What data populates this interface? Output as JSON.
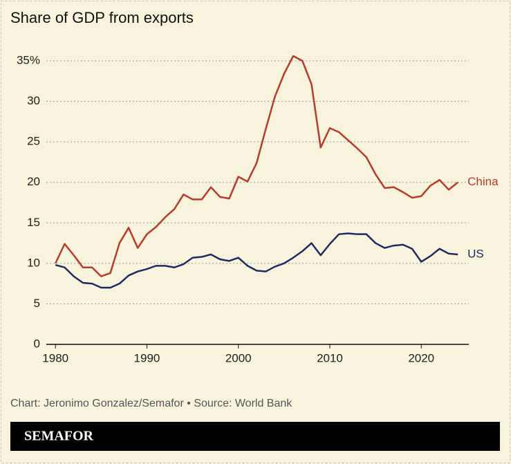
{
  "chart_data": {
    "type": "line",
    "title": "Share of GDP from exports",
    "x": [
      1980,
      1981,
      1982,
      1983,
      1984,
      1985,
      1986,
      1987,
      1988,
      1989,
      1990,
      1991,
      1992,
      1993,
      1994,
      1995,
      1996,
      1997,
      1998,
      1999,
      2000,
      2001,
      2002,
      2003,
      2004,
      2005,
      2006,
      2007,
      2008,
      2009,
      2010,
      2011,
      2012,
      2013,
      2014,
      2015,
      2016,
      2017,
      2018,
      2019,
      2020,
      2021,
      2022,
      2023,
      2024
    ],
    "series": [
      {
        "name": "China",
        "color": "#b83a2b",
        "values": [
          10.0,
          12.4,
          11.0,
          9.5,
          9.5,
          8.4,
          8.8,
          12.5,
          14.4,
          11.9,
          13.6,
          14.5,
          15.7,
          16.7,
          18.5,
          17.9,
          17.9,
          19.4,
          18.2,
          18.0,
          20.7,
          20.1,
          22.4,
          26.6,
          30.6,
          33.4,
          35.6,
          35.0,
          32.1,
          24.3,
          26.7,
          26.2,
          25.2,
          24.2,
          23.1,
          21.0,
          19.3,
          19.4,
          18.8,
          18.1,
          18.3,
          19.6,
          20.3,
          19.1,
          20.0
        ]
      },
      {
        "name": "US",
        "color": "#1f2a63",
        "values": [
          9.8,
          9.5,
          8.4,
          7.6,
          7.5,
          7.0,
          7.0,
          7.5,
          8.5,
          9.0,
          9.3,
          9.7,
          9.7,
          9.5,
          9.9,
          10.7,
          10.8,
          11.1,
          10.5,
          10.3,
          10.7,
          9.7,
          9.1,
          9.0,
          9.6,
          10.0,
          10.7,
          11.5,
          12.5,
          11.0,
          12.4,
          13.6,
          13.7,
          13.6,
          13.6,
          12.5,
          11.9,
          12.2,
          12.3,
          11.8,
          10.2,
          10.9,
          11.8,
          11.2,
          11.1
        ]
      }
    ],
    "xlim": [
      1979,
      2025.2
    ],
    "xticks": [
      1980,
      1990,
      2000,
      2010,
      2020
    ],
    "ylim": [
      0,
      35
    ],
    "yticks": [
      0,
      5,
      10,
      15,
      20,
      25,
      30,
      {
        "value": 35,
        "label": "35%"
      }
    ],
    "grid": true
  },
  "footer": {
    "source": "Chart: Jeronimo Gonzalez/Semafor • Source: World Bank",
    "brand": "SEMAFOR"
  }
}
